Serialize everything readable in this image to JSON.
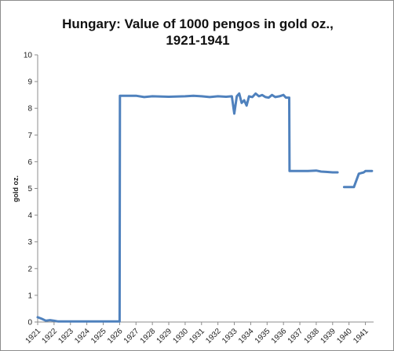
{
  "chart_data": {
    "type": "line",
    "title_lines": [
      "Hungary: Value of 1000 pengos in gold oz.,",
      "1921-1941"
    ],
    "xlabel": "",
    "ylabel": "gold oz.",
    "xlim": [
      1921,
      1941.5
    ],
    "ylim": [
      0,
      10
    ],
    "y_ticks": [
      0,
      1,
      2,
      3,
      4,
      5,
      6,
      7,
      8,
      9,
      10
    ],
    "x_ticks": [
      "1921",
      "1922",
      "1923",
      "1924",
      "1925",
      "1926",
      "1927",
      "1928",
      "1929",
      "1930",
      "1931",
      "1932",
      "1933",
      "1934",
      "1935",
      "1936",
      "1937",
      "1938",
      "1939",
      "1940",
      "1941"
    ],
    "grid": false,
    "legend": "none",
    "series": [
      {
        "color": "#4f81bd",
        "segments": [
          [
            [
              1921.0,
              0.18
            ],
            [
              1921.25,
              0.12
            ],
            [
              1921.5,
              0.05
            ],
            [
              1921.75,
              0.07
            ],
            [
              1922.0,
              0.05
            ],
            [
              1922.25,
              0.02
            ],
            [
              1923.0,
              0.02
            ],
            [
              1924.0,
              0.02
            ],
            [
              1925.0,
              0.02
            ],
            [
              1926.0,
              0.02
            ],
            [
              1926.02,
              8.47
            ],
            [
              1927.0,
              8.47
            ],
            [
              1927.5,
              8.42
            ],
            [
              1928.0,
              8.45
            ],
            [
              1929.0,
              8.43
            ],
            [
              1930.0,
              8.45
            ],
            [
              1930.5,
              8.47
            ],
            [
              1931.0,
              8.45
            ],
            [
              1931.5,
              8.42
            ],
            [
              1932.0,
              8.45
            ],
            [
              1932.5,
              8.43
            ],
            [
              1932.85,
              8.45
            ],
            [
              1933.0,
              7.8
            ],
            [
              1933.15,
              8.45
            ],
            [
              1933.3,
              8.55
            ],
            [
              1933.45,
              8.2
            ],
            [
              1933.6,
              8.3
            ],
            [
              1933.75,
              8.1
            ],
            [
              1933.9,
              8.45
            ],
            [
              1934.1,
              8.42
            ],
            [
              1934.3,
              8.55
            ],
            [
              1934.5,
              8.45
            ],
            [
              1934.7,
              8.5
            ],
            [
              1934.9,
              8.42
            ],
            [
              1935.1,
              8.4
            ],
            [
              1935.3,
              8.5
            ],
            [
              1935.5,
              8.42
            ],
            [
              1935.75,
              8.45
            ],
            [
              1936.0,
              8.5
            ],
            [
              1936.15,
              8.4
            ],
            [
              1936.35,
              8.4
            ],
            [
              1936.37,
              5.65
            ],
            [
              1937.0,
              5.65
            ],
            [
              1937.5,
              5.65
            ],
            [
              1938.0,
              5.67
            ],
            [
              1938.3,
              5.63
            ],
            [
              1938.6,
              5.62
            ],
            [
              1939.0,
              5.6
            ],
            [
              1939.3,
              5.6
            ]
          ],
          [
            [
              1939.7,
              5.05
            ],
            [
              1940.3,
              5.05
            ],
            [
              1940.6,
              5.55
            ],
            [
              1940.9,
              5.6
            ],
            [
              1941.0,
              5.65
            ],
            [
              1941.4,
              5.65
            ]
          ]
        ]
      }
    ]
  }
}
